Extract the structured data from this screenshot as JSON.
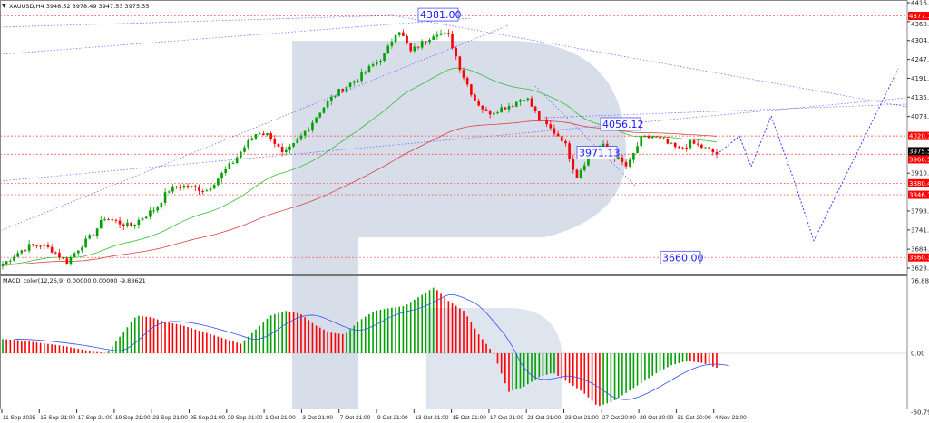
{
  "header": {
    "symbol_line": "XAUUSD,H4  3948.52 3978.49 3947.53 3975.55"
  },
  "macd_label": "MACD_color(12,26,9) 0.00000 0.00000 -9.83621",
  "colors": {
    "bull": "#00a000",
    "bear": "#ff0000",
    "forecast": "#3b3bff",
    "ma_slow": "#e04040",
    "ma_fast": "#30c030",
    "watermark": "#c9d3e3"
  },
  "chart_data": [
    {
      "type": "candlestick",
      "symbol": "XAUUSD",
      "timeframe": "H4",
      "ylim": [
        3628.6,
        4416.2
      ],
      "y_ticks": [
        "4416.20",
        "4360.10",
        "4304.00",
        "4247.90",
        "4191.80",
        "4135.70",
        "4078.50",
        "3910.20",
        "3798.00",
        "3741.90",
        "3684.70",
        "3628.60"
      ],
      "x_ticks": [
        "11 Sep 2025",
        "15 Sep 21:00",
        "17 Sep 21:00",
        "19 Sep 21:00",
        "23 Sep 21:00",
        "25 Sep 21:00",
        "29 Sep 21:00",
        "1 Oct 21:00",
        "3 Oct 21:00",
        "7 Oct 21:00",
        "9 Oct 21:00",
        "13 Oct 21:00",
        "15 Oct 21:00",
        "17 Oct 21:00",
        "21 Oct 21:00",
        "23 Oct 21:00",
        "27 Oct 20:00",
        "29 Oct 20:00",
        "31 Oct 20:00",
        "4 Nov 21:00"
      ],
      "close_path": [
        3639,
        3670,
        3693,
        3698,
        3680,
        3645,
        3690,
        3725,
        3779,
        3765,
        3752,
        3780,
        3806,
        3860,
        3873,
        3866,
        3860,
        3900,
        3940,
        3990,
        4034,
        4021,
        3962,
        4000,
        4048,
        4100,
        4142,
        4170,
        4196,
        4230,
        4263,
        4343,
        4270,
        4300,
        4330,
        4316,
        4209,
        4130,
        4088,
        4102,
        4115,
        4140,
        4075,
        4040,
        4008,
        3900,
        3967,
        3994,
        3960,
        3927,
        4010,
        4020,
        4000,
        3981,
        4000,
        3985,
        3967
      ],
      "price_labels": [
        {
          "text": "4377.11",
          "value": 4377.11,
          "color": "#ff0000"
        },
        {
          "text": "4020.77",
          "value": 4020.77,
          "color": "#ff0000"
        },
        {
          "text": "3975.55",
          "value": 3975.55,
          "color": "#000000"
        },
        {
          "text": "3966.54",
          "value": 3966.54,
          "color": "#ff0000"
        },
        {
          "text": "3880.40",
          "value": 3880.4,
          "color": "#ff0000"
        },
        {
          "text": "3846.19",
          "value": 3846.19,
          "color": "#ff0000"
        },
        {
          "text": "3660.37",
          "value": 3660.37,
          "color": "#ff0000"
        }
      ],
      "annotations": [
        {
          "text": "4381.00",
          "value": 4381.0
        },
        {
          "text": "4056.12",
          "value": 4056.12
        },
        {
          "text": "3971.13",
          "value": 3971.13
        },
        {
          "text": "3660.00",
          "value": 3660.0
        }
      ],
      "forecast_path": [
        3966,
        4020,
        3930,
        4080,
        3890,
        3710,
        4220
      ]
    },
    {
      "type": "bar",
      "name": "MACD_color(12,26,9)",
      "ylim": [
        -60.79459,
        76.88864
      ],
      "y_ticks": [
        "76.88864",
        "0.00",
        "-60.79459"
      ],
      "histogram_path": [
        15,
        14,
        12,
        10,
        8,
        5,
        2,
        0,
        20,
        40,
        38,
        33,
        30,
        25,
        20,
        15,
        10,
        25,
        40,
        45,
        42,
        30,
        22,
        20,
        35,
        45,
        48,
        50,
        60,
        70,
        55,
        45,
        20,
        0,
        -40,
        -35,
        -25,
        -20,
        -30,
        -40,
        -55,
        -50,
        -40,
        -30,
        -20,
        -12,
        -8,
        -10,
        -15
      ]
    }
  ]
}
